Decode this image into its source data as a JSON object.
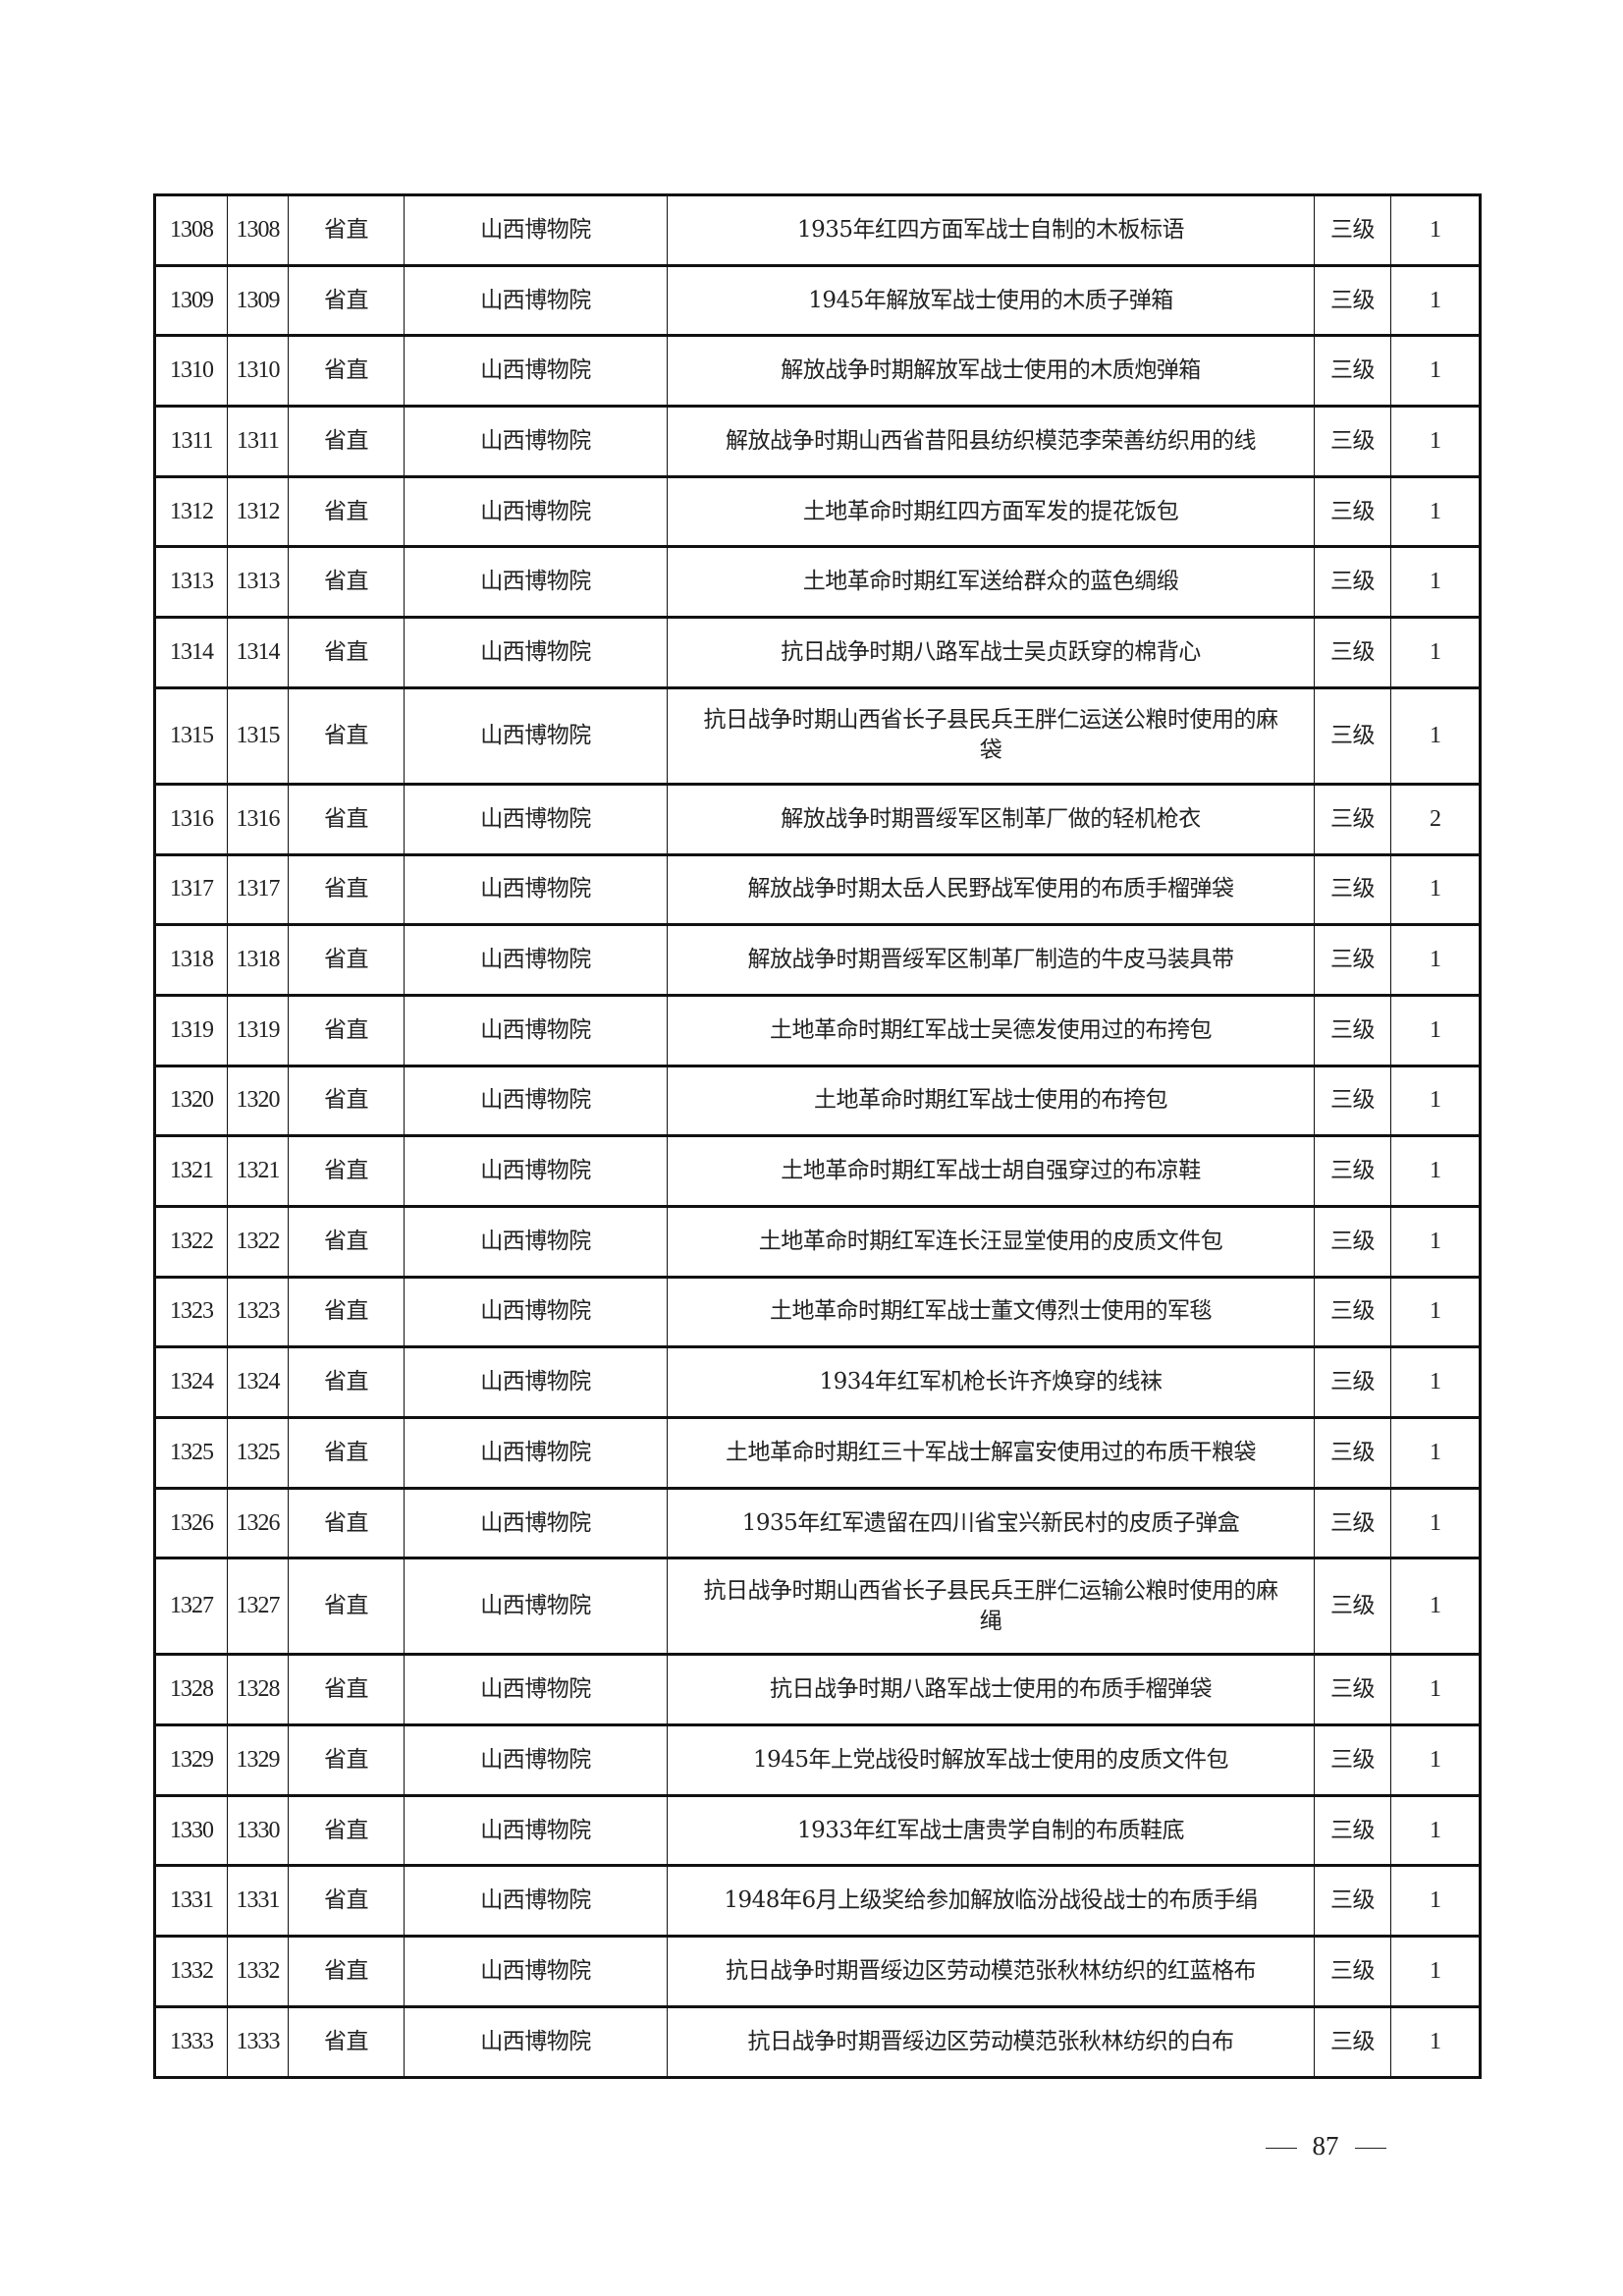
{
  "table": {
    "rows": [
      {
        "no": "1308",
        "no2": "1308",
        "level": "省直",
        "unit": "山西博物院",
        "name": "1935年红四方面军战士自制的木板标语",
        "grade": "三级",
        "qty": "1"
      },
      {
        "no": "1309",
        "no2": "1309",
        "level": "省直",
        "unit": "山西博物院",
        "name": "1945年解放军战士使用的木质子弹箱",
        "grade": "三级",
        "qty": "1"
      },
      {
        "no": "1310",
        "no2": "1310",
        "level": "省直",
        "unit": "山西博物院",
        "name": "解放战争时期解放军战士使用的木质炮弹箱",
        "grade": "三级",
        "qty": "1"
      },
      {
        "no": "1311",
        "no2": "1311",
        "level": "省直",
        "unit": "山西博物院",
        "name": "解放战争时期山西省昔阳县纺织模范李荣善纺织用的线",
        "grade": "三级",
        "qty": "1"
      },
      {
        "no": "1312",
        "no2": "1312",
        "level": "省直",
        "unit": "山西博物院",
        "name": "土地革命时期红四方面军发的提花饭包",
        "grade": "三级",
        "qty": "1"
      },
      {
        "no": "1313",
        "no2": "1313",
        "level": "省直",
        "unit": "山西博物院",
        "name": "土地革命时期红军送给群众的蓝色绸缎",
        "grade": "三级",
        "qty": "1"
      },
      {
        "no": "1314",
        "no2": "1314",
        "level": "省直",
        "unit": "山西博物院",
        "name": "抗日战争时期八路军战士吴贞跃穿的棉背心",
        "grade": "三级",
        "qty": "1"
      },
      {
        "no": "1315",
        "no2": "1315",
        "level": "省直",
        "unit": "山西博物院",
        "name": "抗日战争时期山西省长子县民兵王胖仁运送公粮时使用的麻袋",
        "grade": "三级",
        "qty": "1",
        "tall": true
      },
      {
        "no": "1316",
        "no2": "1316",
        "level": "省直",
        "unit": "山西博物院",
        "name": "解放战争时期晋绥军区制革厂做的轻机枪衣",
        "grade": "三级",
        "qty": "2"
      },
      {
        "no": "1317",
        "no2": "1317",
        "level": "省直",
        "unit": "山西博物院",
        "name": "解放战争时期太岳人民野战军使用的布质手榴弹袋",
        "grade": "三级",
        "qty": "1"
      },
      {
        "no": "1318",
        "no2": "1318",
        "level": "省直",
        "unit": "山西博物院",
        "name": "解放战争时期晋绥军区制革厂制造的牛皮马装具带",
        "grade": "三级",
        "qty": "1"
      },
      {
        "no": "1319",
        "no2": "1319",
        "level": "省直",
        "unit": "山西博物院",
        "name": "土地革命时期红军战士吴德发使用过的布挎包",
        "grade": "三级",
        "qty": "1"
      },
      {
        "no": "1320",
        "no2": "1320",
        "level": "省直",
        "unit": "山西博物院",
        "name": "土地革命时期红军战士使用的布挎包",
        "grade": "三级",
        "qty": "1"
      },
      {
        "no": "1321",
        "no2": "1321",
        "level": "省直",
        "unit": "山西博物院",
        "name": "土地革命时期红军战士胡自强穿过的布凉鞋",
        "grade": "三级",
        "qty": "1"
      },
      {
        "no": "1322",
        "no2": "1322",
        "level": "省直",
        "unit": "山西博物院",
        "name": "土地革命时期红军连长汪显堂使用的皮质文件包",
        "grade": "三级",
        "qty": "1"
      },
      {
        "no": "1323",
        "no2": "1323",
        "level": "省直",
        "unit": "山西博物院",
        "name": "土地革命时期红军战士董文傅烈士使用的军毯",
        "grade": "三级",
        "qty": "1"
      },
      {
        "no": "1324",
        "no2": "1324",
        "level": "省直",
        "unit": "山西博物院",
        "name": "1934年红军机枪长许齐焕穿的线袜",
        "grade": "三级",
        "qty": "1"
      },
      {
        "no": "1325",
        "no2": "1325",
        "level": "省直",
        "unit": "山西博物院",
        "name": "土地革命时期红三十军战士解富安使用过的布质干粮袋",
        "grade": "三级",
        "qty": "1"
      },
      {
        "no": "1326",
        "no2": "1326",
        "level": "省直",
        "unit": "山西博物院",
        "name": "1935年红军遗留在四川省宝兴新民村的皮质子弹盒",
        "grade": "三级",
        "qty": "1"
      },
      {
        "no": "1327",
        "no2": "1327",
        "level": "省直",
        "unit": "山西博物院",
        "name": "抗日战争时期山西省长子县民兵王胖仁运输公粮时使用的麻绳",
        "grade": "三级",
        "qty": "1",
        "tall": true
      },
      {
        "no": "1328",
        "no2": "1328",
        "level": "省直",
        "unit": "山西博物院",
        "name": "抗日战争时期八路军战士使用的布质手榴弹袋",
        "grade": "三级",
        "qty": "1"
      },
      {
        "no": "1329",
        "no2": "1329",
        "level": "省直",
        "unit": "山西博物院",
        "name": "1945年上党战役时解放军战士使用的皮质文件包",
        "grade": "三级",
        "qty": "1"
      },
      {
        "no": "1330",
        "no2": "1330",
        "level": "省直",
        "unit": "山西博物院",
        "name": "1933年红军战士唐贵学自制的布质鞋底",
        "grade": "三级",
        "qty": "1"
      },
      {
        "no": "1331",
        "no2": "1331",
        "level": "省直",
        "unit": "山西博物院",
        "name": "1948年6月上级奖给参加解放临汾战役战士的布质手绢",
        "grade": "三级",
        "qty": "1"
      },
      {
        "no": "1332",
        "no2": "1332",
        "level": "省直",
        "unit": "山西博物院",
        "name": "抗日战争时期晋绥边区劳动模范张秋林纺织的红蓝格布",
        "grade": "三级",
        "qty": "1"
      },
      {
        "no": "1333",
        "no2": "1333",
        "level": "省直",
        "unit": "山西博物院",
        "name": "抗日战争时期晋绥边区劳动模范张秋林纺织的白布",
        "grade": "三级",
        "qty": "1"
      }
    ]
  },
  "footer": {
    "page_number": "87"
  }
}
